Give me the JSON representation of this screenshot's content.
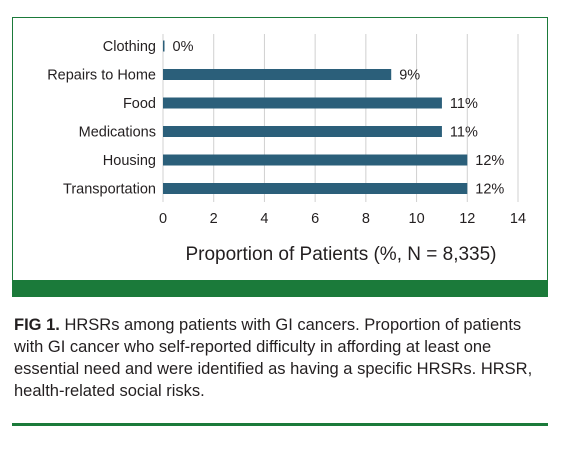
{
  "chart_data": {
    "type": "bar",
    "orientation": "horizontal",
    "categories": [
      "Clothing",
      "Repairs to Home",
      "Food",
      "Medications",
      "Housing",
      "Transportation"
    ],
    "values": [
      0,
      9,
      11,
      11,
      12,
      12
    ],
    "data_labels": [
      "0%",
      "9%",
      "11%",
      "11%",
      "12%",
      "12%"
    ],
    "xlabel": "Proportion of Patients (%, N = 8,335)",
    "xlim": [
      0,
      14
    ],
    "xticks": [
      0,
      2,
      4,
      6,
      8,
      10,
      12,
      14
    ],
    "grid": "vertical",
    "bar_color": "#2b5f7a"
  },
  "caption": {
    "label": "FIG 1.",
    "text": "HRSRs among patients with GI cancers. Proportion of patients with GI cancer who self-reported difficulty in affording at least one essential need and were identified as having a specific HRSRs. HRSR, health-related social risks."
  },
  "colors": {
    "frame_green": "#1b7a3a",
    "gridline": "#d0d0d0"
  }
}
